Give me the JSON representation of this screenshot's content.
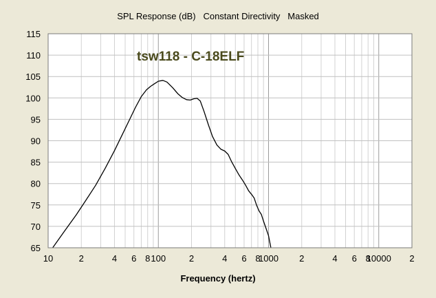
{
  "chart_data": {
    "type": "line",
    "title": "SPL Response (dB)   Constant Directivity   Masked",
    "annotation": "tsw118 - C-18ELF",
    "xlabel": "Frequency (hertz)",
    "ylabel": "",
    "xscale": "log",
    "xlim": [
      10,
      20000
    ],
    "ylim": [
      65,
      115
    ],
    "yticks": [
      65,
      70,
      75,
      80,
      85,
      90,
      95,
      100,
      105,
      110,
      115
    ],
    "xtick_labels": [
      {
        "v": 10,
        "t": "10"
      },
      {
        "v": 20,
        "t": "2"
      },
      {
        "v": 40,
        "t": "4"
      },
      {
        "v": 60,
        "t": "6"
      },
      {
        "v": 80,
        "t": "8"
      },
      {
        "v": 100,
        "t": "100"
      },
      {
        "v": 200,
        "t": "2"
      },
      {
        "v": 400,
        "t": "4"
      },
      {
        "v": 600,
        "t": "6"
      },
      {
        "v": 800,
        "t": "8"
      },
      {
        "v": 1000,
        "t": "1000"
      },
      {
        "v": 2000,
        "t": "2"
      },
      {
        "v": 4000,
        "t": "4"
      },
      {
        "v": 6000,
        "t": "6"
      },
      {
        "v": 8000,
        "t": "8"
      },
      {
        "v": 10000,
        "t": "10000"
      },
      {
        "v": 20000,
        "t": "2"
      }
    ],
    "grid": true,
    "colors": {
      "line": "#000000",
      "plot_bg": "#ffffff",
      "grid": "#c0c0c0",
      "page_bg": "#ece9d8",
      "annotation": "#4a4a1c"
    },
    "series": [
      {
        "x": [
          11,
          14,
          18,
          22,
          27,
          33,
          40,
          47,
          55,
          62,
          70,
          78,
          85,
          92,
          100,
          110,
          120,
          135,
          150,
          165,
          180,
          195,
          210,
          225,
          240,
          260,
          285,
          310,
          340,
          370,
          400,
          430,
          460,
          500,
          540,
          580,
          620,
          660,
          700,
          740,
          780,
          820,
          860,
          900,
          950,
          1000,
          1050
        ],
        "y": [
          65,
          68.8,
          72.7,
          76.1,
          79.6,
          83.6,
          87.7,
          91.4,
          95,
          97.8,
          100.3,
          101.9,
          102.7,
          103.3,
          103.9,
          104.1,
          103.7,
          102.4,
          101,
          100.1,
          99.6,
          99.5,
          99.8,
          99.9,
          99.3,
          96.8,
          93.7,
          91,
          89,
          88,
          87.6,
          86.8,
          85.2,
          83.5,
          82,
          80.8,
          79.6,
          78.3,
          77.5,
          76.6,
          74.9,
          73.6,
          72.8,
          71.2,
          69.5,
          67.8,
          65
        ]
      }
    ]
  }
}
